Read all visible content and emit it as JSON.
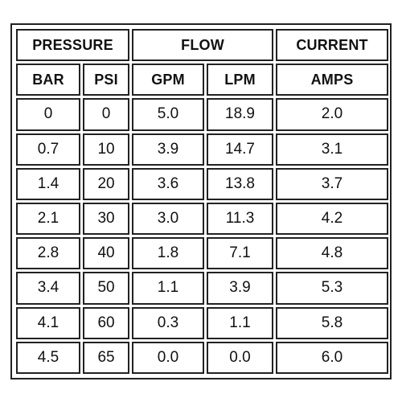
{
  "table": {
    "group_headers": {
      "pressure": "PRESSURE",
      "flow": "FLOW",
      "current": "CURRENT"
    },
    "sub_headers": {
      "bar": "BAR",
      "psi": "PSI",
      "gpm": "GPM",
      "lpm": "LPM",
      "amps": "AMPS"
    },
    "rows": [
      {
        "bar": "0",
        "psi": "0",
        "gpm": "5.0",
        "lpm": "18.9",
        "amps": "2.0"
      },
      {
        "bar": "0.7",
        "psi": "10",
        "gpm": "3.9",
        "lpm": "14.7",
        "amps": "3.1"
      },
      {
        "bar": "1.4",
        "psi": "20",
        "gpm": "3.6",
        "lpm": "13.8",
        "amps": "3.7"
      },
      {
        "bar": "2.1",
        "psi": "30",
        "gpm": "3.0",
        "lpm": "11.3",
        "amps": "4.2"
      },
      {
        "bar": "2.8",
        "psi": "40",
        "gpm": "1.8",
        "lpm": "7.1",
        "amps": "4.8"
      },
      {
        "bar": "3.4",
        "psi": "50",
        "gpm": "1.1",
        "lpm": "3.9",
        "amps": "5.3"
      },
      {
        "bar": "4.1",
        "psi": "60",
        "gpm": "0.3",
        "lpm": "1.1",
        "amps": "5.8"
      },
      {
        "bar": "4.5",
        "psi": "65",
        "gpm": "0.0",
        "lpm": "0.0",
        "amps": "6.0"
      }
    ]
  }
}
